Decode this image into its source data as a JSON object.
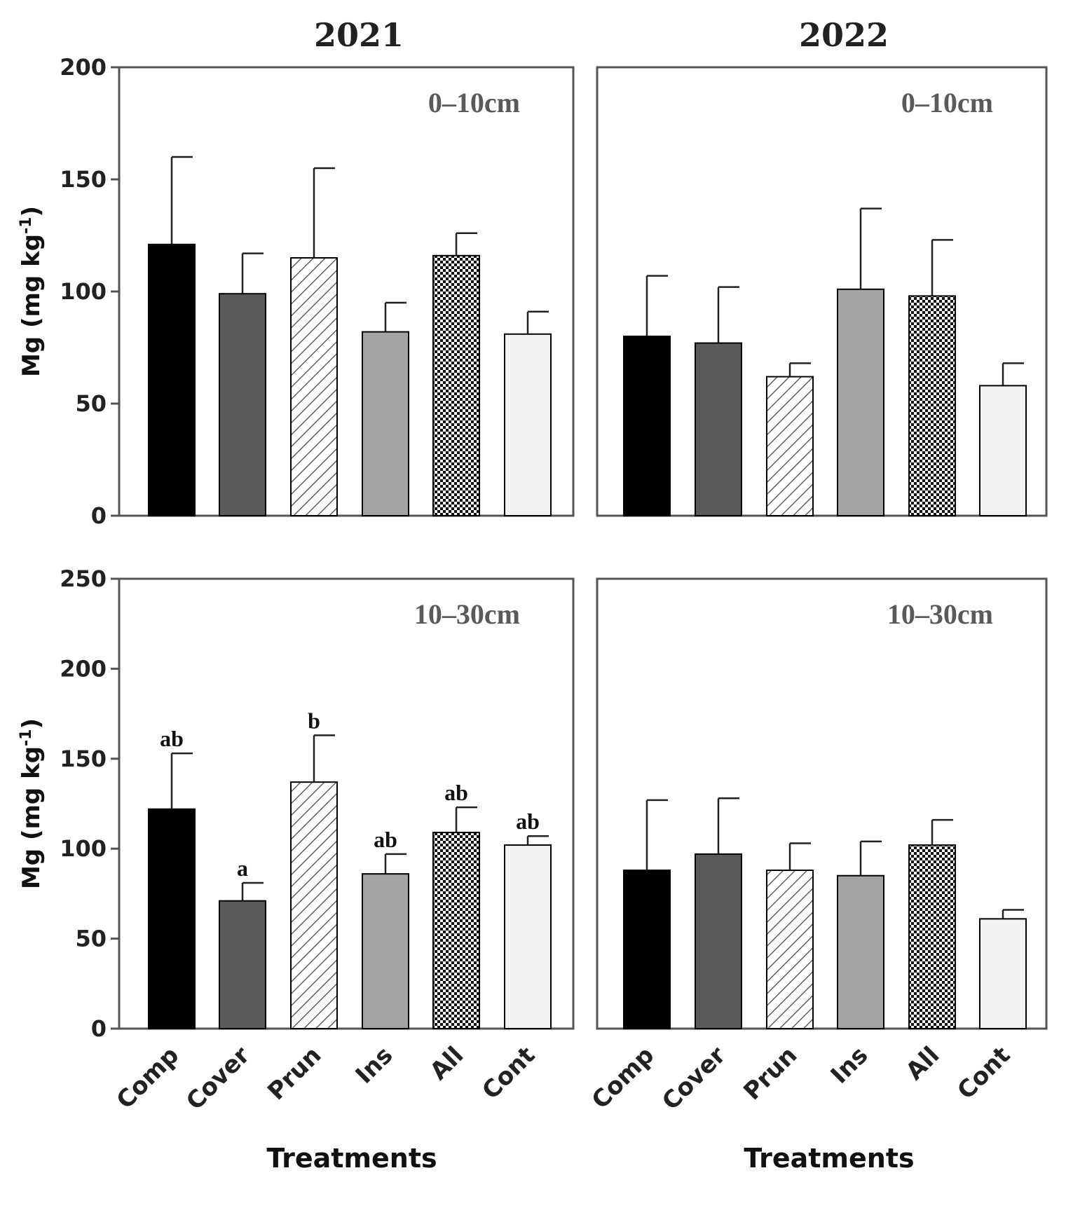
{
  "chart_data": [
    {
      "type": "bar",
      "year": "2021",
      "depth": "0–10cm",
      "categories": [
        "Comp",
        "Cover",
        "Prun",
        "Ins",
        "All",
        "Cont"
      ],
      "values": [
        121,
        99,
        115,
        82,
        116,
        81
      ],
      "errors": [
        39,
        18,
        40,
        13,
        10,
        10
      ],
      "significance": [
        "",
        "",
        "",
        "",
        "",
        ""
      ],
      "ylim": [
        0,
        200
      ],
      "yticks": [
        0,
        50,
        100,
        150,
        200
      ],
      "ylabel": "Mg (mg kg",
      "ylabel_sup": "-1",
      "ylabel_close": ")",
      "xlabel": "Treatments"
    },
    {
      "type": "bar",
      "year": "2022",
      "depth": "0–10cm",
      "categories": [
        "Comp",
        "Cover",
        "Prun",
        "Ins",
        "All",
        "Cont"
      ],
      "values": [
        80,
        77,
        62,
        101,
        98,
        58
      ],
      "errors": [
        27,
        25,
        6,
        36,
        25,
        10
      ],
      "significance": [
        "",
        "",
        "",
        "",
        "",
        ""
      ],
      "ylim": [
        0,
        200
      ],
      "yticks": [
        0,
        50,
        100,
        150,
        200
      ],
      "xlabel": "Treatments"
    },
    {
      "type": "bar",
      "year": "2021",
      "depth": "10–30cm",
      "categories": [
        "Comp",
        "Cover",
        "Prun",
        "Ins",
        "All",
        "Cont"
      ],
      "values": [
        122,
        71,
        137,
        86,
        109,
        102
      ],
      "errors": [
        31,
        10,
        26,
        11,
        14,
        5
      ],
      "significance": [
        "ab",
        "a",
        "b",
        "ab",
        "ab",
        "ab"
      ],
      "ylim": [
        0,
        250
      ],
      "yticks": [
        0,
        50,
        100,
        150,
        200,
        250
      ],
      "ylabel": "Mg (mg kg",
      "ylabel_sup": "-1",
      "ylabel_close": ")",
      "xlabel": "Treatments"
    },
    {
      "type": "bar",
      "year": "2022",
      "depth": "10–30cm",
      "categories": [
        "Comp",
        "Cover",
        "Prun",
        "Ins",
        "All",
        "Cont"
      ],
      "values": [
        88,
        97,
        88,
        85,
        102,
        61
      ],
      "errors": [
        39,
        31,
        15,
        19,
        14,
        5
      ],
      "significance": [
        "",
        "",
        "",
        "",
        "",
        ""
      ],
      "ylim": [
        0,
        250
      ],
      "yticks": [
        0,
        50,
        100,
        150,
        200,
        250
      ],
      "xlabel": "Treatments"
    }
  ],
  "columns": [
    "2021",
    "2022"
  ],
  "bar_colors": {
    "Comp": "#000000",
    "Cover": "#5a5a5a",
    "Prun": "hatch",
    "Ins": "#a3a3a3",
    "All": "checker",
    "Cont": "#f2f2f2"
  },
  "xlabel": "Treatments"
}
